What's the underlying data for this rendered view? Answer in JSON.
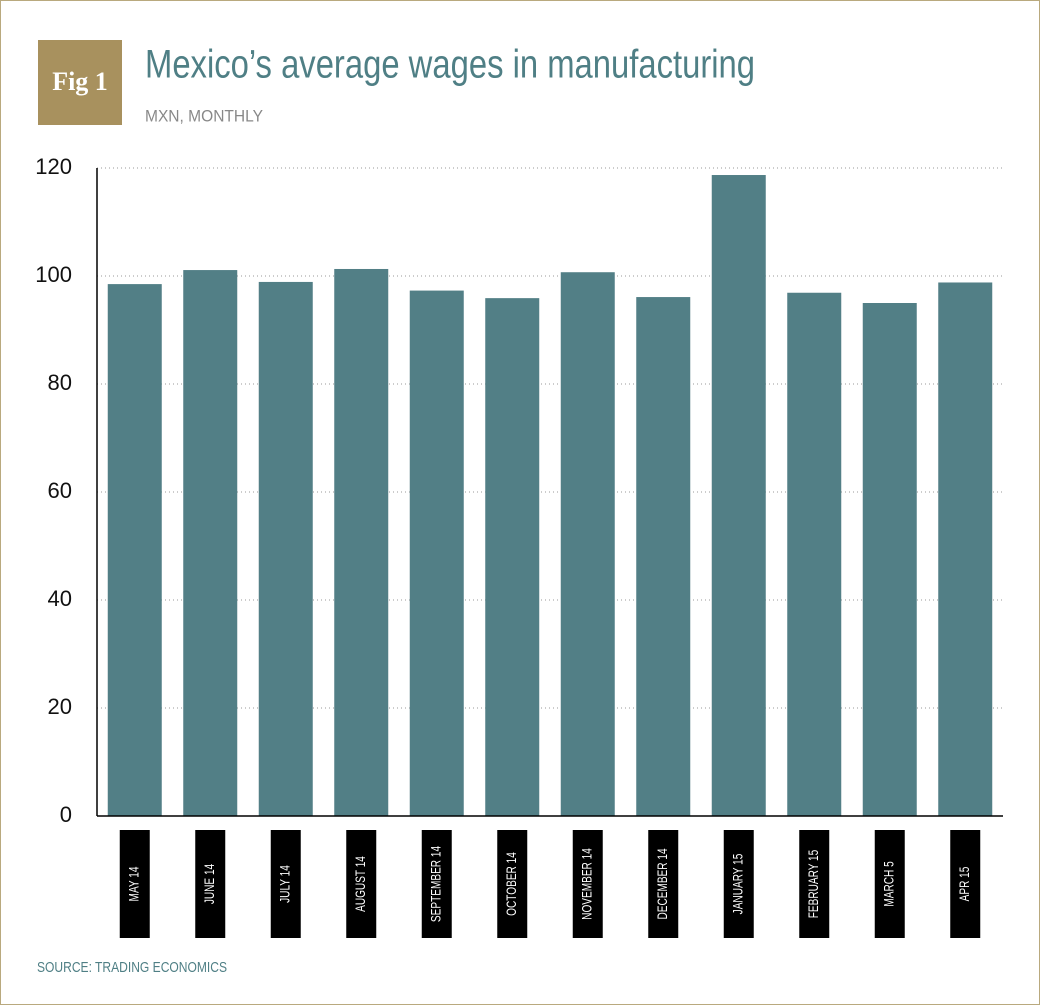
{
  "chart_data": {
    "type": "bar",
    "figure_label": "Fig 1",
    "title": "Mexico’s average wages in manufacturing",
    "subtitle": "MXN, MONTHLY",
    "categories": [
      "MAY 14",
      "JUNE 14",
      "JULY 14",
      "AUGUST 14",
      "SEPTEMBER 14",
      "OCTOBER 14",
      "NOVEMBER 14",
      "DECEMBER 14",
      "JANUARY 15",
      "FEBRUARY 15",
      "MARCH 5",
      "APR 15"
    ],
    "values": [
      98.5,
      101.1,
      98.9,
      101.3,
      97.3,
      95.9,
      100.7,
      96.1,
      118.7,
      96.9,
      95,
      98.8
    ],
    "color": "#527f86",
    "ylim": [
      0,
      120
    ],
    "yticks": [
      0,
      20,
      40,
      60,
      80,
      100,
      120
    ],
    "grid": true,
    "source": "SOURCE: TRADING ECONOMICS"
  }
}
